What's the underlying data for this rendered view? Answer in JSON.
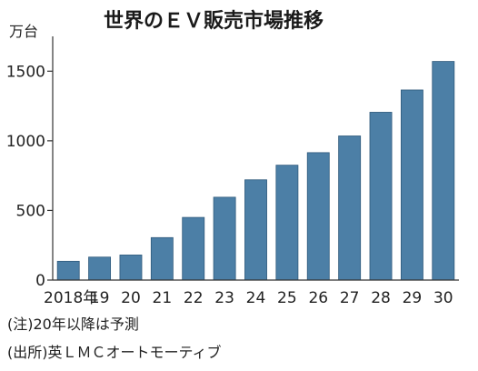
{
  "title": "世界のＥＶ販売市場推移",
  "unit_label": "万台",
  "notes": [
    "(注)20年以降は予測",
    "(出所)英ＬＭＣオートモーティブ"
  ],
  "colors": {
    "bar": "#4c7fa6",
    "bar_edge": "#2f5a7c",
    "axis": "#333333",
    "text": "#222222"
  },
  "chart_data": {
    "type": "bar",
    "title": "世界のＥＶ販売市場推移",
    "ylabel": "万台",
    "xlabel": "",
    "categories": [
      "2018年",
      "19",
      "20",
      "21",
      "22",
      "23",
      "24",
      "25",
      "26",
      "27",
      "28",
      "29",
      "30"
    ],
    "values": [
      135,
      165,
      180,
      305,
      450,
      595,
      720,
      825,
      915,
      1035,
      1205,
      1365,
      1570
    ],
    "ylim": [
      0,
      1750
    ],
    "yticks": [
      0,
      500,
      1000,
      1500
    ],
    "grid": false,
    "legend": "none"
  }
}
